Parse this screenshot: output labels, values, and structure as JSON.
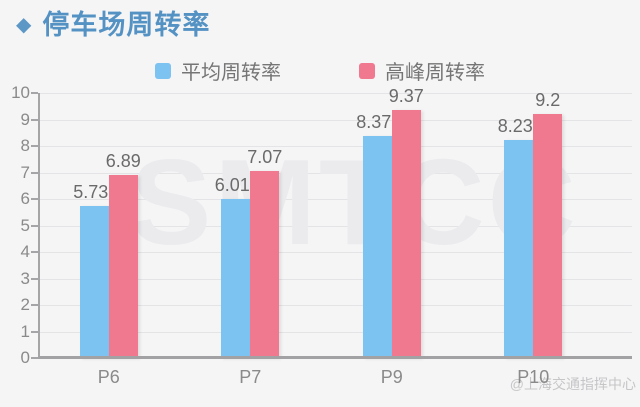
{
  "header": {
    "diamond_icon": "◆",
    "title": "停车场周转率"
  },
  "watermark": "SMTCC",
  "credit": "@上海交通指挥中心",
  "colors": {
    "title_blue": "#5592c4",
    "average_bar": "#7dc3f2",
    "peak_bar": "#f0788f",
    "grid_line": "#e4e4e7",
    "axis_line": "#a5a5a7",
    "background": "#f5f5f6"
  },
  "chart_data": {
    "type": "bar",
    "title": "停车场周转率",
    "categories": [
      "P6",
      "P7",
      "P9",
      "P10"
    ],
    "series": [
      {
        "name": "平均周转率",
        "color": "#7dc3f2",
        "values": [
          5.73,
          6.01,
          8.37,
          8.23
        ]
      },
      {
        "name": "高峰周转率",
        "color": "#f0788f",
        "values": [
          6.89,
          7.07,
          9.37,
          9.2
        ]
      }
    ],
    "xlabel": "",
    "ylabel": "",
    "ylim": [
      0,
      10
    ],
    "ytick_step": 1,
    "grid": true,
    "legend_position": "top-center",
    "value_labels": true
  }
}
